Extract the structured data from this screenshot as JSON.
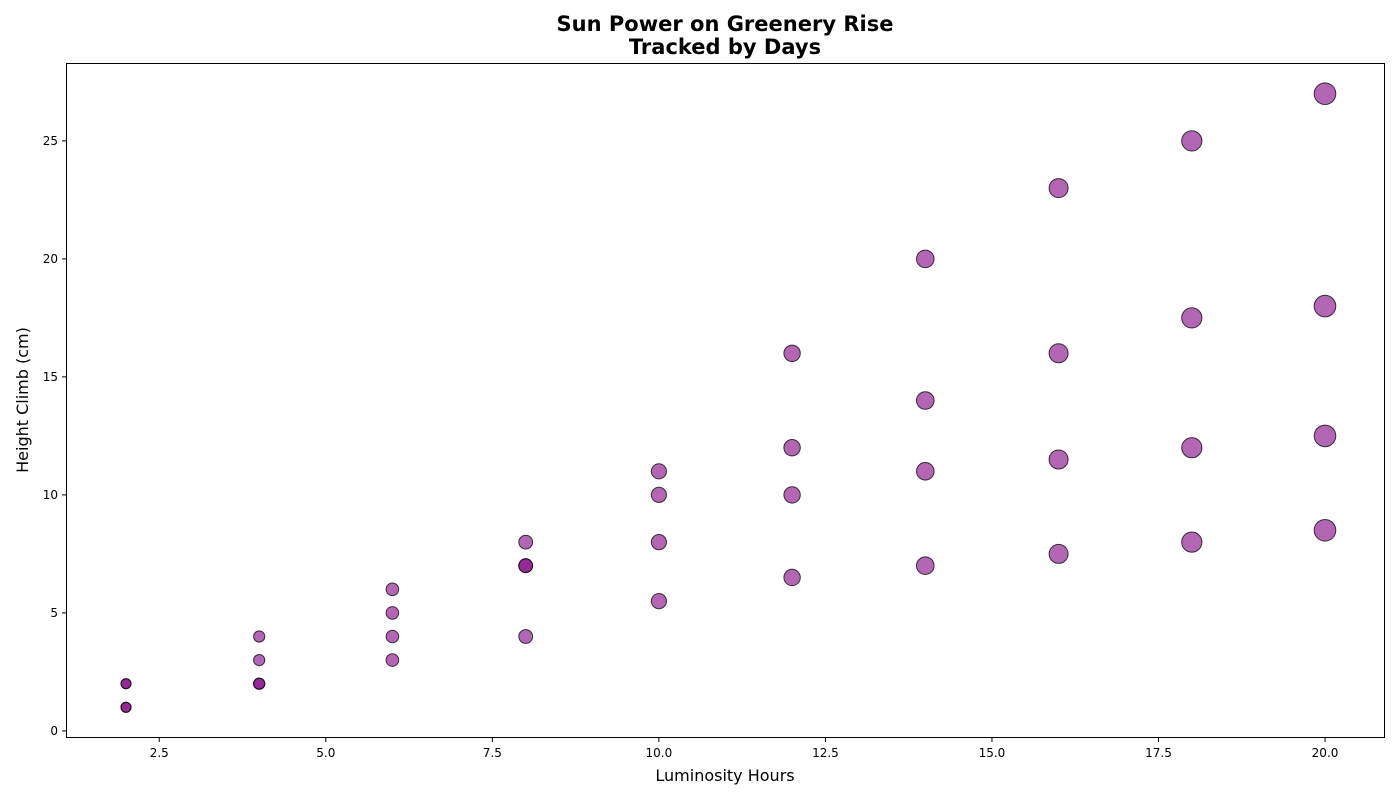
{
  "chart_data": {
    "type": "scatter",
    "title": [
      "Sun Power on Greenery Rise",
      "Tracked by Days"
    ],
    "xlabel": "Luminosity Hours",
    "ylabel": "Height Climb (cm)",
    "xlim": [
      1.1,
      20.9
    ],
    "ylim": [
      -0.3,
      28.3
    ],
    "xticks": [
      2.5,
      5.0,
      7.5,
      10.0,
      12.5,
      15.0,
      17.5,
      20.0
    ],
    "xtick_labels": [
      "2.5",
      "5.0",
      "7.5",
      "10.0",
      "12.5",
      "15.0",
      "17.5",
      "20.0"
    ],
    "yticks": [
      0,
      5,
      10,
      15,
      20,
      25
    ],
    "ytick_labels": [
      "0",
      "5",
      "10",
      "15",
      "20",
      "25"
    ],
    "grid": false,
    "marker_color": "#800080",
    "marker_edge_color": "#000000",
    "points": [
      {
        "x": 2,
        "y": 1
      },
      {
        "x": 2,
        "y": 1
      },
      {
        "x": 2,
        "y": 2
      },
      {
        "x": 2,
        "y": 2
      },
      {
        "x": 4,
        "y": 2
      },
      {
        "x": 4,
        "y": 2
      },
      {
        "x": 4,
        "y": 3
      },
      {
        "x": 4,
        "y": 4
      },
      {
        "x": 6,
        "y": 3
      },
      {
        "x": 6,
        "y": 4
      },
      {
        "x": 6,
        "y": 5
      },
      {
        "x": 6,
        "y": 6
      },
      {
        "x": 8,
        "y": 4
      },
      {
        "x": 8,
        "y": 7
      },
      {
        "x": 8,
        "y": 7
      },
      {
        "x": 8,
        "y": 8
      },
      {
        "x": 10,
        "y": 5.5
      },
      {
        "x": 10,
        "y": 8
      },
      {
        "x": 10,
        "y": 10
      },
      {
        "x": 10,
        "y": 11
      },
      {
        "x": 12,
        "y": 6.5
      },
      {
        "x": 12,
        "y": 10
      },
      {
        "x": 12,
        "y": 12
      },
      {
        "x": 12,
        "y": 16
      },
      {
        "x": 14,
        "y": 7
      },
      {
        "x": 14,
        "y": 11
      },
      {
        "x": 14,
        "y": 14
      },
      {
        "x": 14,
        "y": 20
      },
      {
        "x": 16,
        "y": 7.5
      },
      {
        "x": 16,
        "y": 11.5
      },
      {
        "x": 16,
        "y": 16
      },
      {
        "x": 16,
        "y": 23
      },
      {
        "x": 18,
        "y": 8
      },
      {
        "x": 18,
        "y": 12
      },
      {
        "x": 18,
        "y": 17.5
      },
      {
        "x": 18,
        "y": 25
      },
      {
        "x": 20,
        "y": 8.5
      },
      {
        "x": 20,
        "y": 12.5
      },
      {
        "x": 20,
        "y": 18
      },
      {
        "x": 20,
        "y": 27
      }
    ]
  }
}
